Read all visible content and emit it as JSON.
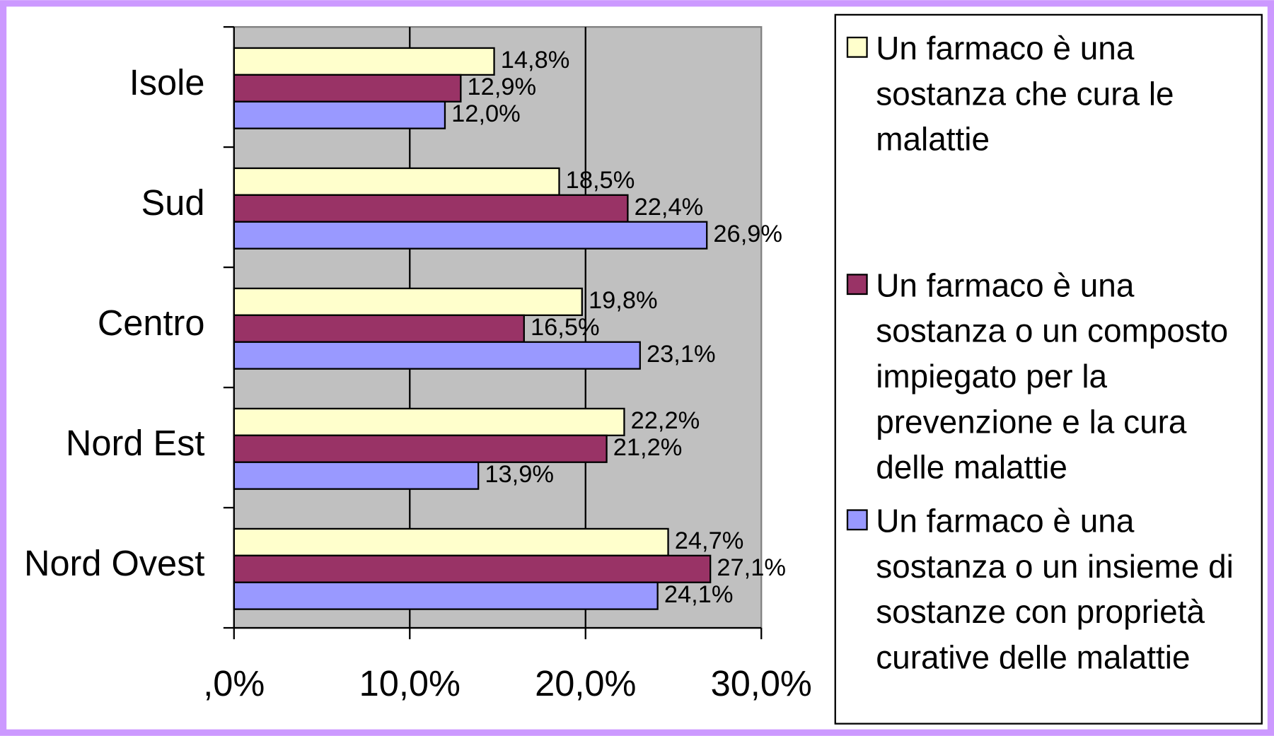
{
  "chart_data": {
    "type": "hbar",
    "categories": [
      "Isole",
      "Sud",
      "Centro",
      "Nord Est",
      "Nord Ovest"
    ],
    "series": [
      {
        "name": "Un farmaco è una sostanza che cura le malattie",
        "color": "#ffffcc",
        "values": [
          14.8,
          18.5,
          19.8,
          22.2,
          24.7
        ],
        "value_labels": [
          "14,8%",
          "18,5%",
          "19,8%",
          "22,2%",
          "24,7%"
        ]
      },
      {
        "name": "Un farmaco è una sostanza o un composto impiegato per la prevenzione e la cura delle malattie",
        "color": "#993366",
        "values": [
          12.9,
          22.4,
          16.5,
          21.2,
          27.1
        ],
        "value_labels": [
          "12,9%",
          "22,4%",
          "16,5%",
          "21,2%",
          "27,1%"
        ]
      },
      {
        "name": "Un farmaco è una sostanza o un insieme di sostanze con proprietà curative delle malattie",
        "color": "#9999ff",
        "values": [
          12.0,
          26.9,
          23.1,
          13.9,
          24.1
        ],
        "value_labels": [
          "12,0%",
          "26,9%",
          "23,1%",
          "13,9%",
          "24,1%"
        ]
      }
    ],
    "xlim": [
      0,
      30
    ],
    "xticks": [
      {
        "value": 0,
        "label": ",0%"
      },
      {
        "value": 10,
        "label": "10,0%"
      },
      {
        "value": 20,
        "label": "20,0%"
      },
      {
        "value": 30,
        "label": "30,0%"
      }
    ],
    "grid": true,
    "legend": "right"
  }
}
